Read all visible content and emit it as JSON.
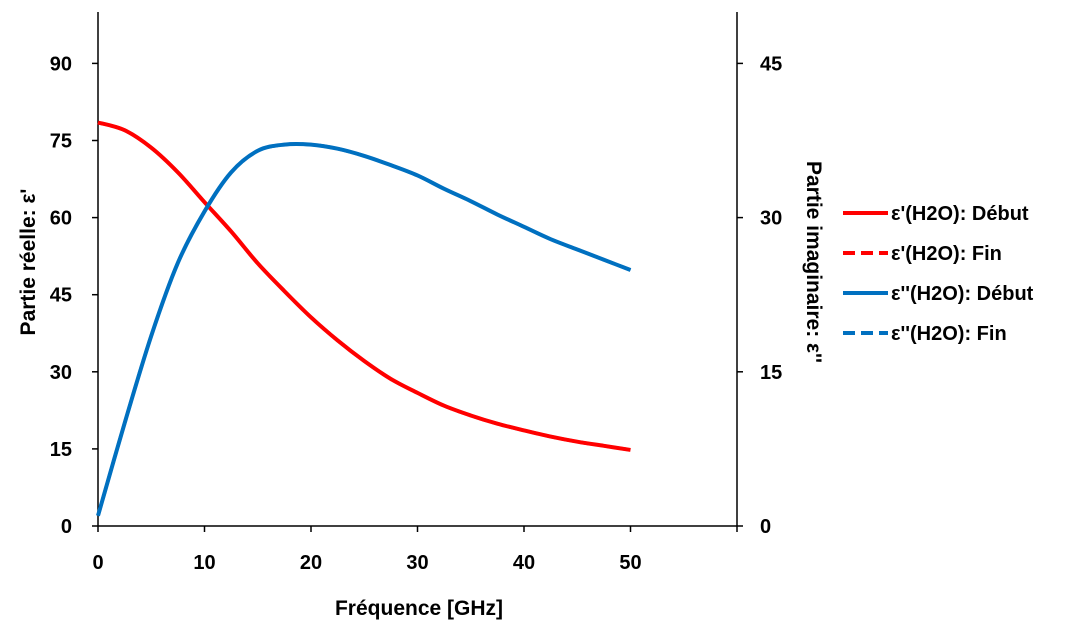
{
  "chart_data": {
    "type": "line",
    "title": "",
    "xlabel": "Fréquence [GHz]",
    "ylabel_left": "Partie réelle: ε'",
    "ylabel_right": "Partie imaginaire: ε''",
    "xlim": [
      0,
      60
    ],
    "ylim_left": [
      0,
      100
    ],
    "ylim_right": [
      0,
      50
    ],
    "x_ticks": [
      "0",
      "10",
      "20",
      "30",
      "40",
      "50"
    ],
    "y_left_ticks": [
      "0",
      "15",
      "30",
      "45",
      "60",
      "75",
      "90"
    ],
    "y_right_ticks": [
      "0",
      "15",
      "30",
      "45"
    ],
    "grid": false,
    "legend_position": "right",
    "x": [
      0,
      2.5,
      5,
      7.5,
      10,
      12.5,
      15,
      17.5,
      20,
      22.5,
      25,
      27.5,
      30,
      32.5,
      35,
      37.5,
      40,
      42.5,
      45,
      47.5,
      50
    ],
    "series": [
      {
        "name": "ε'(H2O): Début",
        "axis": "left",
        "color": "#ff0000",
        "dash": "solid",
        "values": [
          78.5,
          77,
          73.6,
          68.8,
          63,
          57.3,
          51.1,
          45.7,
          40.6,
          36.1,
          32.1,
          28.6,
          25.9,
          23.4,
          21.5,
          19.9,
          18.6,
          17.4,
          16.4,
          15.6,
          14.8
        ]
      },
      {
        "name": "ε'(H2O): Fin",
        "axis": "left",
        "color": "#ff0000",
        "dash": "dashed",
        "values": [
          78.5,
          77,
          73.6,
          68.8,
          63,
          57.3,
          51.1,
          45.7,
          40.6,
          36.1,
          32.1,
          28.6,
          25.9,
          23.4,
          21.5,
          19.9,
          18.6,
          17.4,
          16.4,
          15.6,
          14.8
        ]
      },
      {
        "name": "ε''(H2O): Début",
        "axis": "right",
        "color": "#0070c0",
        "dash": "solid",
        "values": [
          1,
          10,
          18.5,
          25.6,
          30.6,
          34.4,
          36.5,
          37.1,
          37.1,
          36.7,
          36,
          35.1,
          34.1,
          32.8,
          31.6,
          30.3,
          29.1,
          27.9,
          26.9,
          25.9,
          24.9
        ]
      },
      {
        "name": "ε''(H2O): Fin",
        "axis": "right",
        "color": "#0070c0",
        "dash": "dashed",
        "values": [
          1,
          10,
          18.5,
          25.6,
          30.6,
          34.4,
          36.5,
          37.1,
          37.1,
          36.7,
          36,
          35.1,
          34.1,
          32.8,
          31.6,
          30.3,
          29.1,
          27.9,
          26.9,
          25.9,
          24.9
        ]
      }
    ]
  }
}
